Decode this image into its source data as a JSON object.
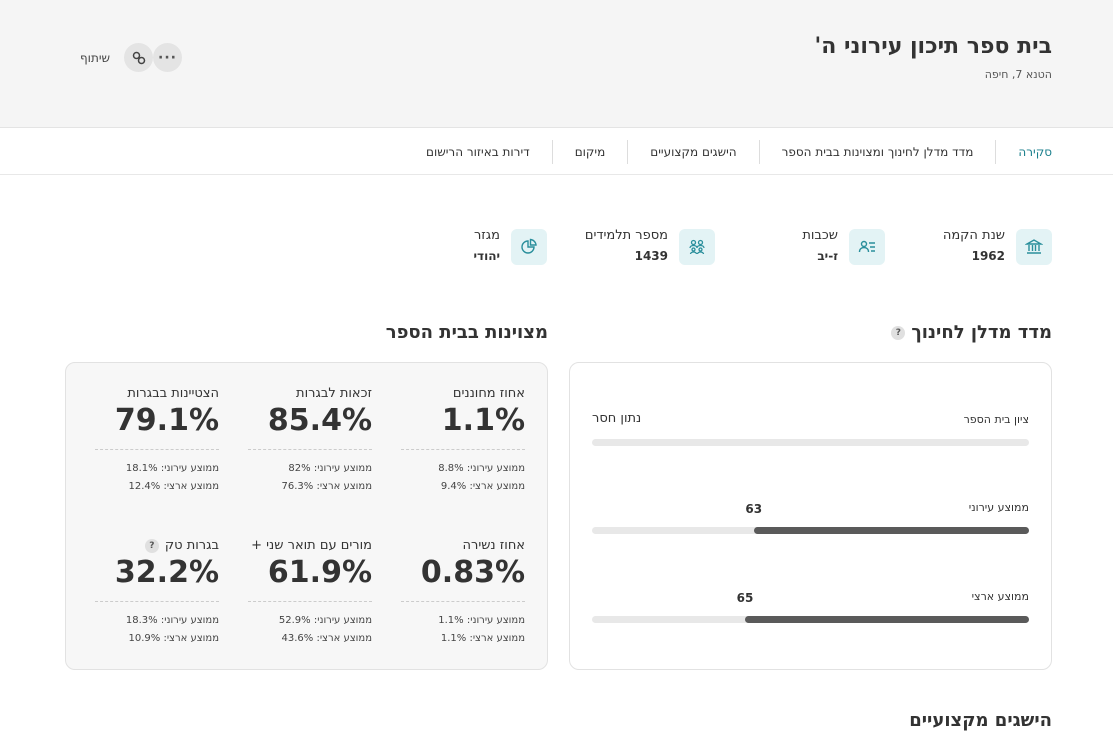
{
  "header": {
    "title": "בית ספר תיכון עירוני ה'",
    "address": "הטנא 7, חיפה",
    "share_label": "שיתוף"
  },
  "tabs": [
    "סקירה",
    "מדד מדלן לחינוך ומצוינות בבית הספר",
    "הישגים מקצועיים",
    "מיקום",
    "דירות באיזור הרישום"
  ],
  "facts": {
    "founded": {
      "label": "שנת הקמה",
      "value": "1962"
    },
    "grades": {
      "label": "שכבות",
      "value": "ז-יב"
    },
    "students": {
      "label": "מספר תלמידים",
      "value": "1439"
    },
    "sector": {
      "label": "מגזר",
      "value": "יהודי"
    }
  },
  "madlan_index": {
    "title": "מדד מדלן לחינוך",
    "help": "?",
    "rows": [
      {
        "label": "ציון בית הספר",
        "value": "נתון חסר",
        "level": null
      },
      {
        "label": "ממוצע עירוני",
        "value": "63",
        "level": 63
      },
      {
        "label": "ממוצע ארצי",
        "value": "65",
        "level": 65
      }
    ]
  },
  "excellence": {
    "title": "מצוינות בבית הספר",
    "stats": [
      {
        "label": "אחוז מחוננים",
        "value": "1.1%",
        "city": "ממוצע עירוני: 8.8%",
        "national": "ממוצע ארצי: 9.4%"
      },
      {
        "label": "זכאות לבגרות",
        "value": "85.4%",
        "city": "ממוצע עירוני: 82%",
        "national": "ממוצע ארצי: 76.3%"
      },
      {
        "label": "הצטיינות בבגרות",
        "value": "79.1%",
        "city": "ממוצע עירוני: 18.1%",
        "national": "ממוצע ארצי: 12.4%"
      },
      {
        "label": "אחוז נשירה",
        "value": "0.83%",
        "city": "ממוצע עירוני: 1.1%",
        "national": "ממוצע ארצי: 1.1%"
      },
      {
        "label": "מורים עם תואר שני +",
        "value": "61.9%",
        "city": "ממוצע עירוני: 52.9%",
        "national": "ממוצע ארצי: 43.6%"
      },
      {
        "label": "בגרות טק",
        "value": "32.2%",
        "city": "ממוצע עירוני: 18.3%",
        "national": "ממוצע ארצי: 10.9%",
        "help": "?"
      }
    ]
  },
  "next_section": {
    "title": "הישגים מקצועיים"
  },
  "colors": {
    "accent": "#1a7f8c",
    "icon_bg": "#e3f3f5",
    "bar_fill": "#5a5a5a",
    "bar_track": "#e8e8e8"
  },
  "icons": [
    "building-icon",
    "grades-icon",
    "students-icon",
    "pie-chart-icon",
    "link-icon",
    "more-icon"
  ]
}
